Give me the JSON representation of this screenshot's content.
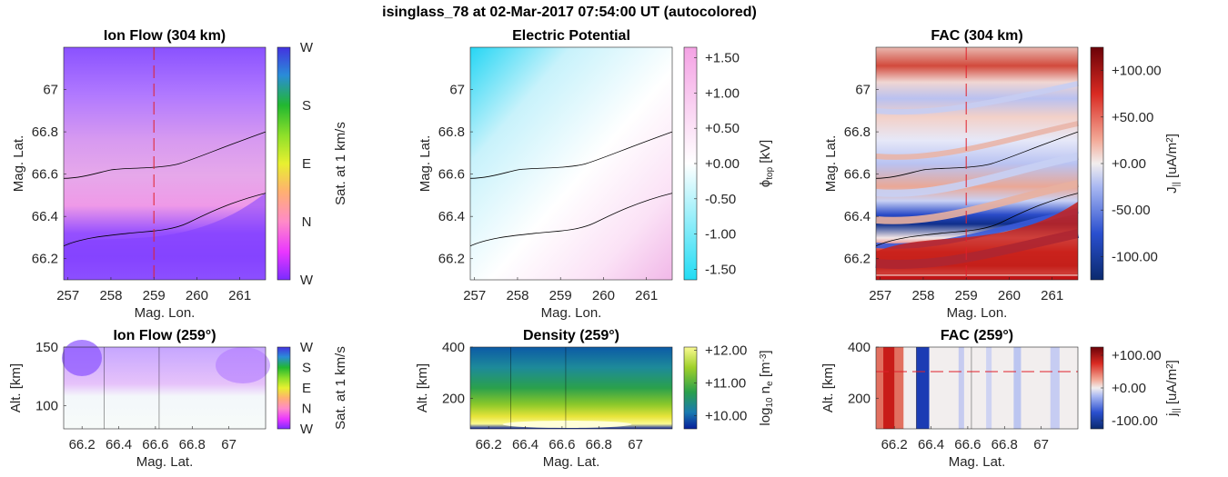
{
  "suptitle": "isinglass_78 at 02-Mar-2017 07:54:00 UT (autocolored)",
  "colors": {
    "contour": "#000000",
    "marker_line": "#e0202a",
    "grid_line": "#000000"
  },
  "chart_data": [
    {
      "id": "ion_flow_top",
      "type": "heatmap",
      "title": "Ion Flow (304 km)",
      "xlabel": "Mag. Lon.",
      "ylabel": "Mag. Lat.",
      "xlim": [
        256.9,
        261.6
      ],
      "ylim": [
        66.1,
        67.2
      ],
      "xticks": [
        "257",
        "258",
        "259",
        "260",
        "261"
      ],
      "xtick_values": [
        257,
        258,
        259,
        260,
        261
      ],
      "yticks": [
        "66.2",
        "66.4",
        "66.6",
        "66.8",
        "67"
      ],
      "ytick_values": [
        66.2,
        66.4,
        66.6,
        66.8,
        67.0
      ],
      "marker_x": 259,
      "colorbar": {
        "label": "Sat. at 1 km/s",
        "ticks": [
          "W",
          "N",
          "E",
          "S",
          "W"
        ]
      }
    },
    {
      "id": "potential_top",
      "type": "heatmap",
      "title": "Electric Potential",
      "xlabel": "Mag. Lon.",
      "ylabel": "Mag. Lat.",
      "xlim": [
        256.9,
        261.6
      ],
      "ylim": [
        66.1,
        67.2
      ],
      "xticks": [
        "257",
        "258",
        "259",
        "260",
        "261"
      ],
      "xtick_values": [
        257,
        258,
        259,
        260,
        261
      ],
      "yticks": [
        "66.2",
        "66.4",
        "66.6",
        "66.8",
        "67"
      ],
      "ytick_values": [
        66.2,
        66.4,
        66.6,
        66.8,
        67.0
      ],
      "colorbar": {
        "label_main": "ϕ",
        "label_sub": "top",
        "label_unit": " [kV]",
        "range": [
          -1.65,
          1.65
        ],
        "ticks": [
          "+1.50",
          "+1.00",
          "+0.50",
          "+0.00",
          "-0.50",
          "-1.00",
          "-1.50"
        ],
        "tick_values": [
          1.5,
          1.0,
          0.5,
          0.0,
          -0.5,
          -1.0,
          -1.5
        ]
      }
    },
    {
      "id": "fac_top",
      "type": "heatmap",
      "title": "FAC (304 km)",
      "xlabel": "Mag. Lon.",
      "ylabel": "Mag. Lat.",
      "xlim": [
        256.9,
        261.6
      ],
      "ylim": [
        66.1,
        67.2
      ],
      "xticks": [
        "257",
        "258",
        "259",
        "260",
        "261"
      ],
      "xtick_values": [
        257,
        258,
        259,
        260,
        261
      ],
      "yticks": [
        "66.2",
        "66.4",
        "66.6",
        "66.8",
        "67"
      ],
      "ytick_values": [
        66.2,
        66.4,
        66.6,
        66.8,
        67.0
      ],
      "marker_x": 259,
      "colorbar": {
        "label_main": "J",
        "label_sub": "||",
        "label_unit": " [uA/m",
        "label_sup": "2",
        "label_end": "]",
        "range": [
          -125,
          125
        ],
        "ticks": [
          "+100.00",
          "+50.00",
          "+0.00",
          "-50.00",
          "-100.00"
        ],
        "tick_values": [
          100,
          50,
          0,
          -50,
          -100
        ]
      }
    },
    {
      "id": "ion_flow_bottom",
      "type": "heatmap",
      "title": "Ion Flow (259°)",
      "xlabel": "Mag. Lat.",
      "ylabel": "Alt. [km]",
      "xlim": [
        66.1,
        67.2
      ],
      "ylim": [
        80,
        150
      ],
      "xticks": [
        "66.2",
        "66.4",
        "66.6",
        "66.8",
        "67"
      ],
      "xtick_values": [
        66.2,
        66.4,
        66.6,
        66.8,
        67.0
      ],
      "yticks": [
        "100",
        "150"
      ],
      "ytick_values": [
        100,
        150
      ],
      "colorbar": {
        "label": "Sat. at 1 km/s",
        "ticks": [
          "W",
          "N",
          "E",
          "S",
          "W"
        ]
      }
    },
    {
      "id": "density_bottom",
      "type": "heatmap",
      "title": "Density (259°)",
      "xlabel": "Mag. Lat.",
      "ylabel": "Alt. [km]",
      "xlim": [
        66.1,
        67.2
      ],
      "ylim": [
        80,
        400
      ],
      "xticks": [
        "66.2",
        "66.4",
        "66.6",
        "66.8",
        "67"
      ],
      "xtick_values": [
        66.2,
        66.4,
        66.6,
        66.8,
        67.0
      ],
      "yticks": [
        "200",
        "400"
      ],
      "ytick_values": [
        200,
        400
      ],
      "colorbar": {
        "label_pre": "log",
        "label_pre_sub": "10",
        "label_main": " n",
        "label_sub": "e",
        "label_unit": " [m",
        "label_sup": "-3",
        "label_end": "]",
        "range": [
          9.6,
          12.1
        ],
        "ticks": [
          "+12.00",
          "+11.00",
          "+10.00"
        ],
        "tick_values": [
          12,
          11,
          10
        ]
      }
    },
    {
      "id": "fac_bottom",
      "type": "heatmap",
      "title": "FAC (259°)",
      "xlabel": "Mag. Lat.",
      "ylabel": "Alt. [km]",
      "xlim": [
        66.1,
        67.2
      ],
      "ylim": [
        80,
        400
      ],
      "xticks": [
        "66.2",
        "66.4",
        "66.6",
        "66.8",
        "67"
      ],
      "xtick_values": [
        66.2,
        66.4,
        66.6,
        66.8,
        67.0
      ],
      "yticks": [
        "200",
        "400"
      ],
      "ytick_values": [
        200,
        400
      ],
      "marker_y": 304,
      "colorbar": {
        "label_main": "j",
        "label_sub": "||",
        "label_unit": " [uA/m",
        "label_sup": "2",
        "label_end": "]",
        "range": [
          -125,
          125
        ],
        "ticks": [
          "+100.00",
          "+0.00",
          "-100.00"
        ],
        "tick_values": [
          100,
          0,
          -100
        ]
      }
    }
  ]
}
